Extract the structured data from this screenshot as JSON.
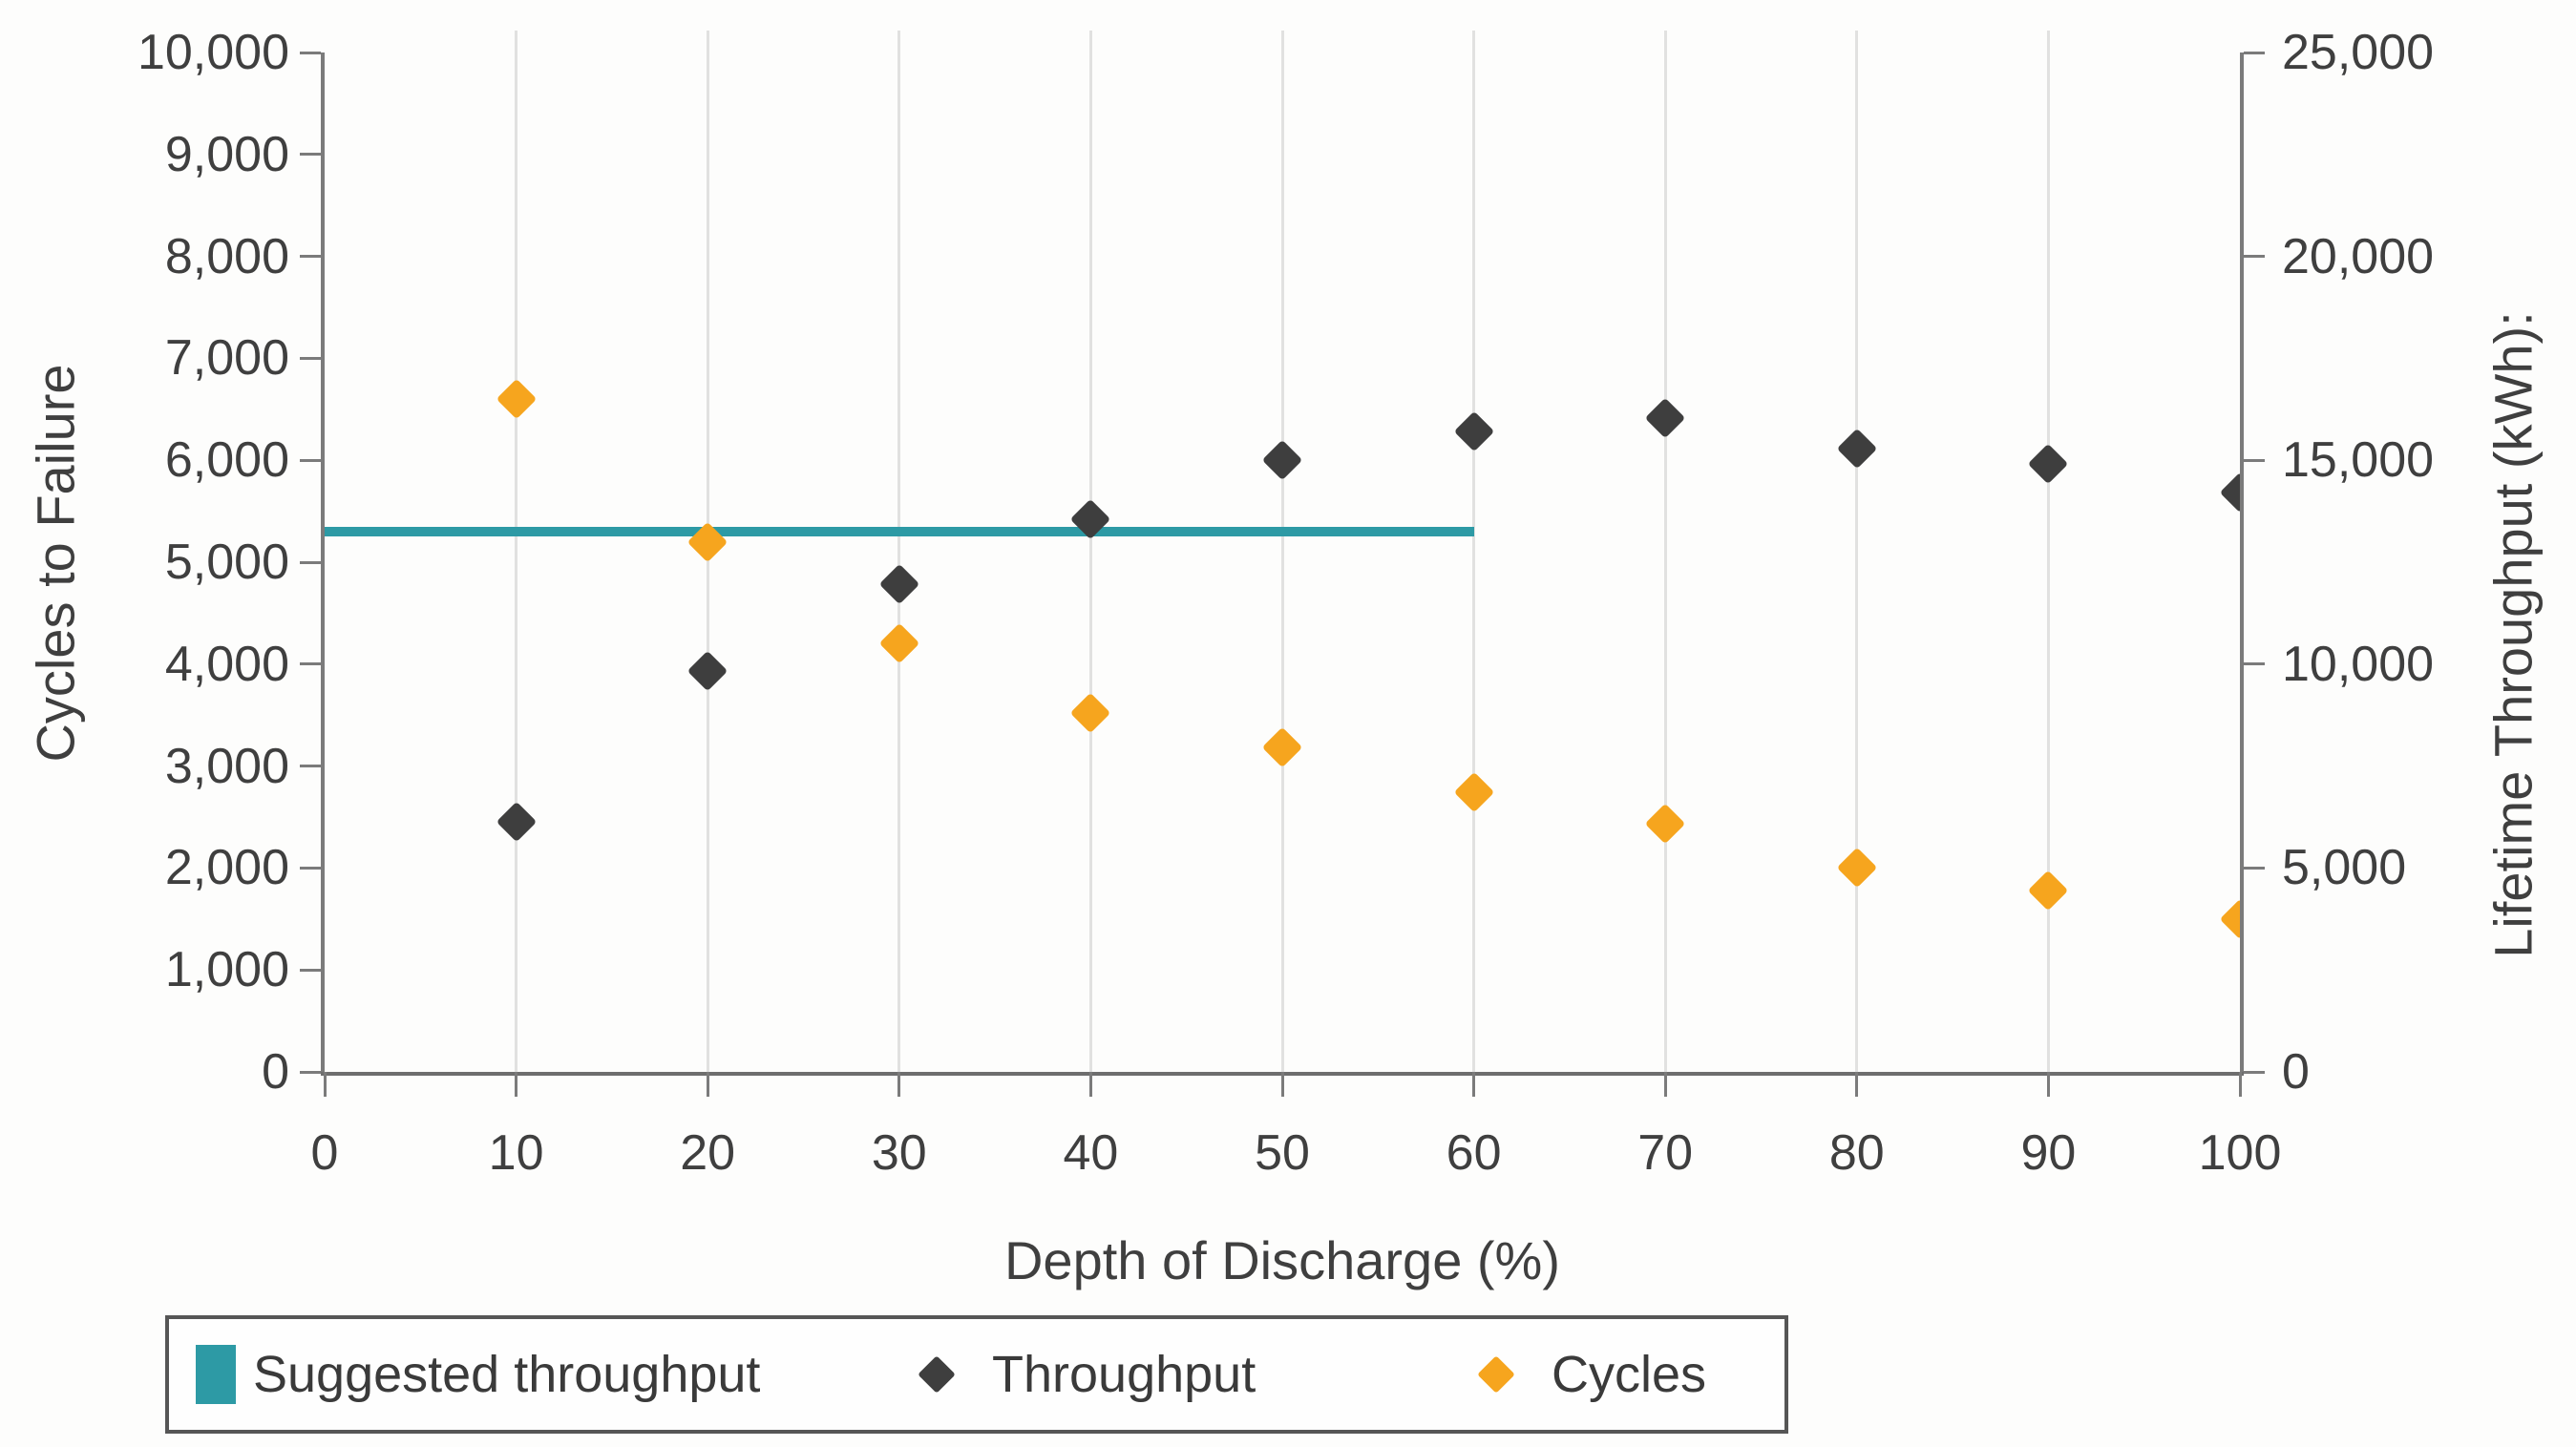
{
  "axes": {
    "x_title": "Depth of Discharge (%)",
    "y_left_title": "Cycles to Failure",
    "y_right_title": "Lifetime Throughput (kWh):"
  },
  "legend": {
    "items": [
      {
        "label": "Suggested throughput",
        "marker": "square",
        "color": "#2d9aa5"
      },
      {
        "label": "Throughput",
        "marker": "diamond",
        "color": "#3e3e3e"
      },
      {
        "label": "Cycles",
        "marker": "diamond",
        "color": "#f6a51e"
      }
    ]
  },
  "colors": {
    "suggested": "#2d9aa5",
    "throughput": "#3e3e3e",
    "cycles": "#f6a51e",
    "axis": "#7b7b7b",
    "baseline": "#6e6e6e",
    "grid": "#e1e1e0",
    "text": "#3f3f3f"
  },
  "chart_data": {
    "type": "scatter",
    "x_label": "Depth of Discharge (%)",
    "x_range": [
      0,
      100
    ],
    "x_ticks": [
      "0",
      "10",
      "20",
      "30",
      "40",
      "50",
      "60",
      "70",
      "80",
      "90",
      "100"
    ],
    "y_left": {
      "label": "Cycles to Failure",
      "range": [
        0,
        10000
      ],
      "ticks": [
        "0",
        "1,000",
        "2,000",
        "3,000",
        "4,000",
        "5,000",
        "6,000",
        "7,000",
        "8,000",
        "9,000",
        "10,000"
      ]
    },
    "y_right": {
      "label": "Lifetime Throughput (kWh):",
      "range": [
        0,
        25000
      ],
      "ticks": [
        "0",
        "5,000",
        "10,000",
        "15,000",
        "20,000",
        "25,000"
      ]
    },
    "grid": "vertical-only",
    "legend_position": "bottom",
    "series": [
      {
        "name": "Suggested throughput",
        "type": "hline",
        "axis": "right",
        "value": 13250,
        "x_from": 0,
        "x_to": 60,
        "color": "#2d9aa5"
      },
      {
        "name": "Throughput",
        "type": "scatter",
        "marker": "diamond",
        "axis": "right",
        "color": "#3e3e3e",
        "x": [
          10,
          20,
          30,
          40,
          50,
          60,
          70,
          80,
          90,
          100
        ],
        "values": [
          6130,
          9820,
          11960,
          13560,
          15000,
          15700,
          16040,
          15280,
          14900,
          14200
        ]
      },
      {
        "name": "Cycles",
        "type": "scatter",
        "marker": "diamond",
        "axis": "left",
        "color": "#f6a51e",
        "x": [
          10,
          20,
          30,
          40,
          50,
          60,
          70,
          80,
          90,
          100
        ],
        "values": [
          6600,
          5200,
          4200,
          3520,
          3180,
          2740,
          2430,
          2000,
          1780,
          1500
        ]
      }
    ]
  }
}
